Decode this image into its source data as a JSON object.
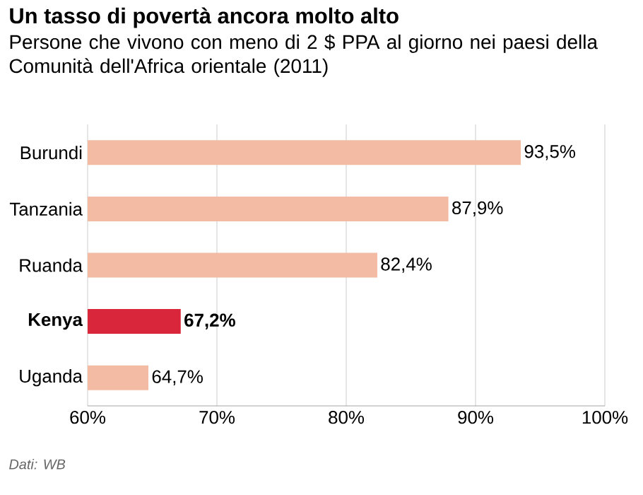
{
  "chart_data": {
    "type": "bar",
    "orientation": "horizontal",
    "title": "Un tasso di povertà ancora molto alto",
    "subtitle": "Persone che vivono con meno di 2 $ PPA al giorno nei paesi della Comunità dell'Africa orientale (2011)",
    "categories": [
      "Burundi",
      "Tanzania",
      "Ruanda",
      "Kenya",
      "Uganda"
    ],
    "values": [
      93.5,
      87.9,
      82.4,
      67.2,
      64.7
    ],
    "colors": [
      "#f3bba4",
      "#f3bba4",
      "#f3bba4",
      "#d9263a",
      "#f3bba4"
    ],
    "value_labels": [
      "93,5%",
      "87,9%",
      "82,4%",
      "67,2%",
      "64,7%"
    ],
    "xlim": [
      60,
      100
    ],
    "xticks": [
      {
        "value": 60,
        "label": "60%"
      },
      {
        "value": 70,
        "label": "70%"
      },
      {
        "value": 80,
        "label": "80%"
      },
      {
        "value": 90,
        "label": "90%"
      },
      {
        "value": 100,
        "label": "100%"
      }
    ],
    "grid": "x",
    "annotations": [
      "Dati: WB"
    ]
  }
}
